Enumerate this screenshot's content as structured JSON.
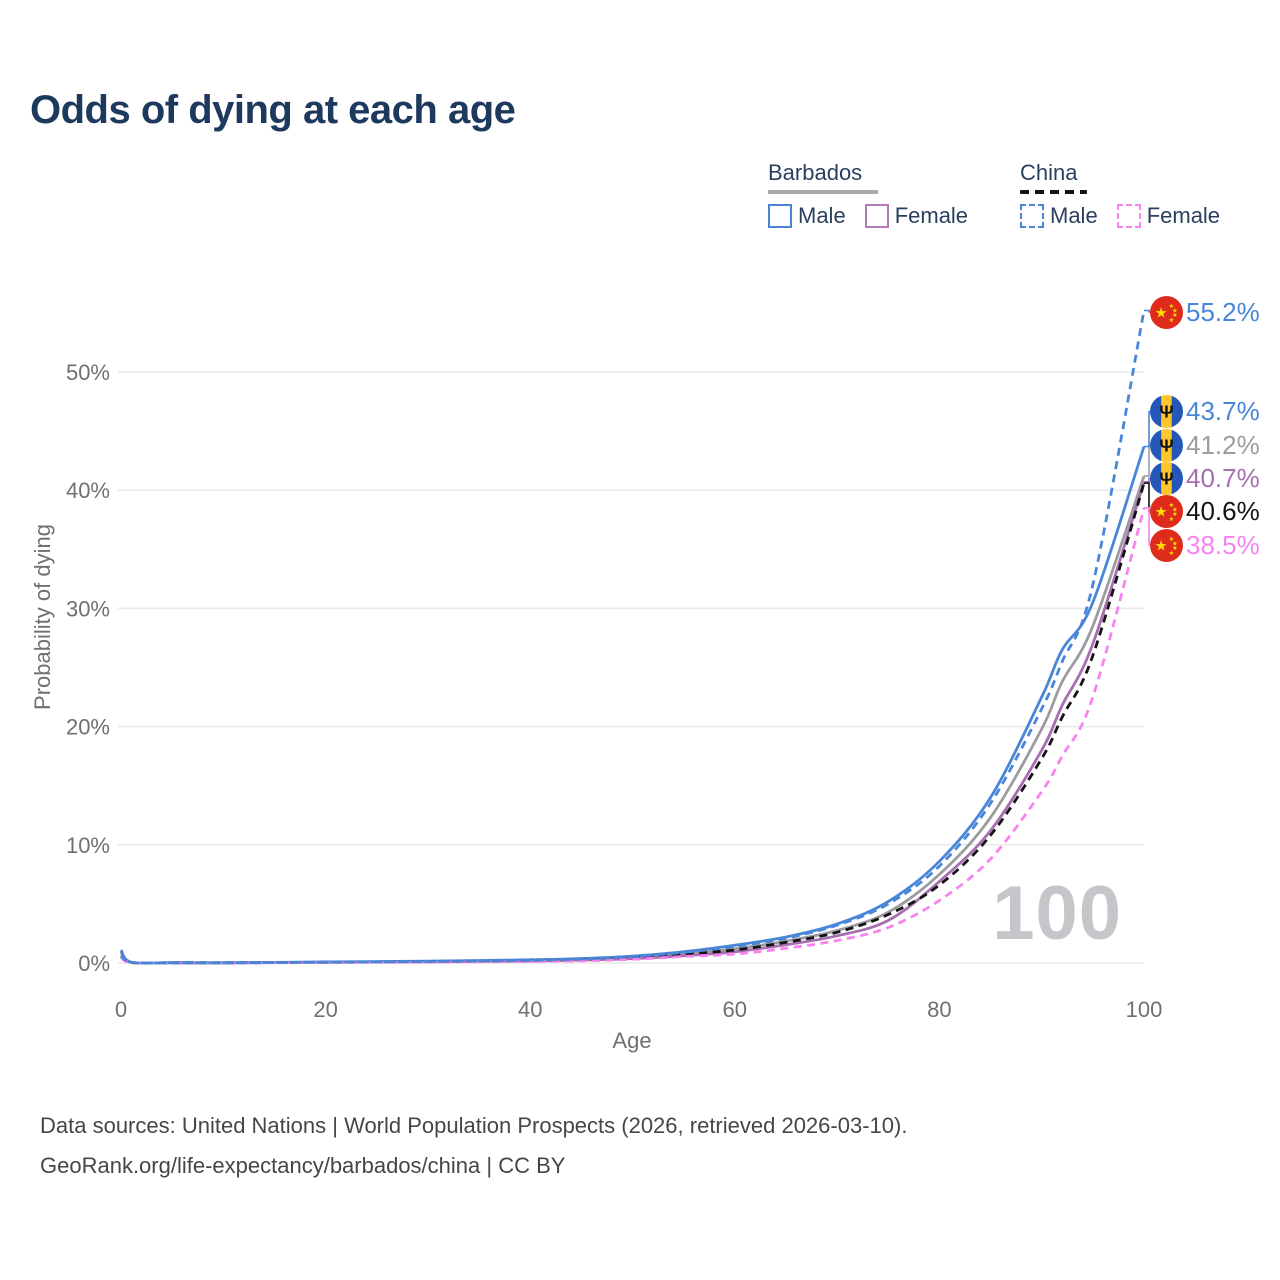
{
  "title": "Odds of dying at each age",
  "legend": {
    "groups": [
      {
        "label": "Barbados",
        "items": [
          {
            "label": "Male"
          },
          {
            "label": "Female"
          }
        ]
      },
      {
        "label": "China",
        "items": [
          {
            "label": "Male"
          },
          {
            "label": "Female"
          }
        ]
      }
    ]
  },
  "chart_data": {
    "type": "line",
    "title": "Odds of dying at each age",
    "xlabel": "Age",
    "ylabel": "Probability of dying",
    "xlim": [
      0,
      100
    ],
    "ylim_percent": [
      0,
      55.2
    ],
    "grid": "horizontal",
    "legend_position": "top-right",
    "x_ticks": [
      {
        "v": 0,
        "label": "0"
      },
      {
        "v": 20,
        "label": "20"
      },
      {
        "v": 40,
        "label": "40"
      },
      {
        "v": 60,
        "label": "60"
      },
      {
        "v": 80,
        "label": "80"
      },
      {
        "v": 100,
        "label": "100"
      }
    ],
    "y_ticks": [
      {
        "v": 0,
        "label": "0%"
      },
      {
        "v": 10,
        "label": "10%"
      },
      {
        "v": 20,
        "label": "20%"
      },
      {
        "v": 30,
        "label": "30%"
      },
      {
        "v": 40,
        "label": "40%"
      },
      {
        "v": 50,
        "label": "50%"
      }
    ],
    "x": [
      0,
      1,
      5,
      10,
      15,
      20,
      25,
      30,
      35,
      40,
      45,
      50,
      55,
      60,
      65,
      70,
      75,
      80,
      85,
      90,
      92,
      95,
      100
    ],
    "series": [
      {
        "name": "Barbados Both",
        "country": "barbados",
        "sex": "both",
        "color": "#9c9ca0",
        "dash": false,
        "end_label": "41.2%",
        "values": [
          1.0,
          0.06,
          0.025,
          0.02,
          0.045,
          0.08,
          0.1,
          0.13,
          0.17,
          0.21,
          0.31,
          0.47,
          0.78,
          1.2,
          1.85,
          2.75,
          4.3,
          7.5,
          12.3,
          19.8,
          23.8,
          28.5,
          41.2
        ]
      },
      {
        "name": "Barbados Female",
        "country": "barbados",
        "sex": "female",
        "color": "#a76fb1",
        "dash": false,
        "end_label": "40.7%",
        "values": [
          0.9,
          0.05,
          0.02,
          0.015,
          0.035,
          0.06,
          0.08,
          0.1,
          0.13,
          0.16,
          0.25,
          0.37,
          0.62,
          0.95,
          1.55,
          2.3,
          3.6,
          6.9,
          11.2,
          18.0,
          21.8,
          27.0,
          40.7
        ]
      },
      {
        "name": "Barbados Male",
        "country": "barbados",
        "sex": "male",
        "color": "#4a86d8",
        "dash": false,
        "end_label": "43.7%",
        "values": [
          1.1,
          0.07,
          0.03,
          0.02,
          0.05,
          0.09,
          0.12,
          0.16,
          0.21,
          0.27,
          0.38,
          0.58,
          0.95,
          1.5,
          2.2,
          3.3,
          5.2,
          8.6,
          14.0,
          22.5,
          26.5,
          30.5,
          43.7
        ]
      },
      {
        "name": "China Both",
        "country": "china",
        "sex": "both",
        "color": "#141414",
        "dash": true,
        "end_label": "40.6%",
        "values": [
          0.55,
          0.04,
          0.018,
          0.015,
          0.03,
          0.055,
          0.08,
          0.1,
          0.14,
          0.18,
          0.27,
          0.44,
          0.75,
          1.1,
          1.75,
          2.6,
          4.1,
          6.6,
          10.8,
          17.3,
          20.8,
          26.0,
          40.6
        ]
      },
      {
        "name": "China Female",
        "country": "china",
        "sex": "female",
        "color": "#f783ef",
        "dash": true,
        "end_label": "38.5%",
        "values": [
          0.48,
          0.03,
          0.015,
          0.012,
          0.025,
          0.04,
          0.055,
          0.07,
          0.1,
          0.13,
          0.19,
          0.31,
          0.55,
          0.75,
          1.25,
          1.9,
          3.0,
          5.3,
          8.8,
          14.5,
          17.5,
          22.5,
          38.5
        ]
      },
      {
        "name": "China Male",
        "country": "china",
        "sex": "male",
        "color": "#4a86d8",
        "dash": true,
        "end_label": "55.2%",
        "values": [
          0.65,
          0.05,
          0.02,
          0.02,
          0.04,
          0.07,
          0.1,
          0.13,
          0.18,
          0.24,
          0.34,
          0.55,
          0.9,
          1.4,
          2.1,
          3.2,
          5.0,
          8.2,
          13.5,
          21.5,
          25.5,
          32.0,
          55.2
        ]
      }
    ]
  },
  "end_labels": [
    {
      "series": "China Male",
      "flag": "china",
      "value": "55.2%",
      "color": "#4a86d8"
    },
    {
      "series": "Barbados Male",
      "flag": "barbados",
      "value": "43.7%",
      "color": "#4a86d8"
    },
    {
      "series": "Barbados Both",
      "flag": "barbados",
      "value": "41.2%",
      "color": "#9c9ca0"
    },
    {
      "series": "Barbados Female",
      "flag": "barbados",
      "value": "40.7%",
      "color": "#a76fb1"
    },
    {
      "series": "China Both",
      "flag": "china",
      "value": "40.6%",
      "color": "#141414"
    },
    {
      "series": "China Female",
      "flag": "china",
      "value": "38.5%",
      "color": "#f783ef"
    }
  ],
  "flags": {
    "barbados": {
      "blue": "#2457b8",
      "gold": "#ffc72c",
      "trident": "#131313"
    },
    "china": {
      "red": "#de2b1c",
      "star": "#ffdd00"
    }
  },
  "watermark": "100",
  "colors": {
    "title": "#1d3a5e",
    "axis_text": "#6d7074",
    "gridline": "#e9e9eb",
    "watermark": "#c6c6ca"
  },
  "footer": {
    "line1": "Data sources: United Nations | World Population Prospects (2026, retrieved 2026-03-10).",
    "line2": "GeoRank.org/life-expectancy/barbados/china | CC BY"
  }
}
